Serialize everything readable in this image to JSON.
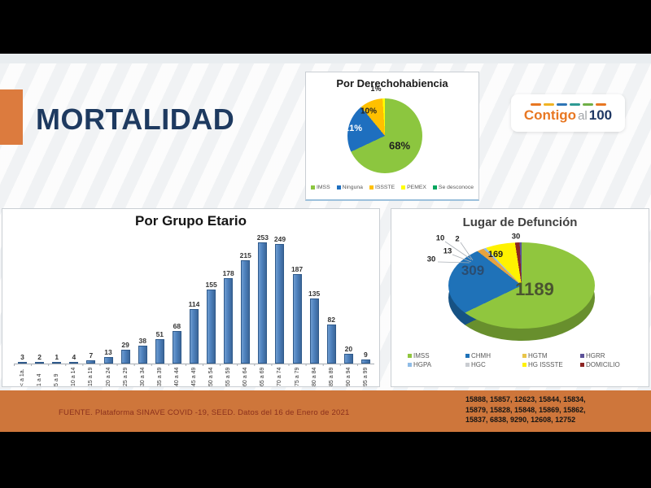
{
  "slide": {
    "title": "MORTALIDAD",
    "source_note": "FUENTE. Plataforma SINAVE COVID -19, SEED. Datos del 16 de Enero de 2021",
    "footer_numbers": [
      "15888, 15857, 12623, 15844, 15834,",
      "15879, 15828, 15848, 15869, 15862,",
      "15837, 6838, 9290, 12608, 12752"
    ]
  },
  "logo": {
    "word1": "Contigo",
    "word2": "al",
    "word3": "100",
    "dash_colors": [
      "#E87722",
      "#F0B323",
      "#2E75B6",
      "#2E9A94",
      "#6FAF46",
      "#E87722"
    ]
  },
  "colors": {
    "accent_orange": "#DC7B3E",
    "footer_orange": "#CE763B",
    "title_navy": "#1E3A60",
    "source_text": "#8B301C",
    "bar_blue": "#4E81BD"
  },
  "chart_data": [
    {
      "id": "derechohabiencia",
      "type": "pie",
      "title": "Por Derechohabiencia",
      "unit": "percent",
      "slices": [
        {
          "name": "IMSS",
          "value": 68,
          "label": "68%",
          "color": "#8CC63F"
        },
        {
          "name": "Ninguna",
          "value": 21,
          "label": "21%",
          "color": "#1E6FBF"
        },
        {
          "name": "ISSSTE",
          "value": 10,
          "label": "10%",
          "color": "#FFC000"
        },
        {
          "name": "PEMEX",
          "value": 1,
          "label": "1%",
          "color": "#FFFF00"
        }
      ],
      "legend": [
        {
          "name": "IMSS",
          "color": "#8CC63F"
        },
        {
          "name": "Ninguna",
          "color": "#1E6FBF"
        },
        {
          "name": "ISSSTE",
          "color": "#FFC000"
        },
        {
          "name": "PEMEX",
          "color": "#FFFF00"
        },
        {
          "name": "Se desconoce",
          "color": "#00A65E"
        }
      ],
      "legend_position": "bottom"
    },
    {
      "id": "grupo_etario",
      "type": "bar",
      "title": "Por Grupo Etario",
      "categories": [
        "< a 1a.",
        "1 a 4",
        "5 a 9",
        "10 a 14",
        "15 a 19",
        "20 a 24",
        "25 a 29",
        "30 a 34",
        "35 a 39",
        "40 a 44",
        "45 a 49",
        "50 a 54",
        "55 a 59",
        "60 a 64",
        "65 a 69",
        "70 a 74",
        "75 a 79",
        "80 a 84",
        "85 a 89",
        "90 a 94",
        "95 a 99"
      ],
      "values": [
        3,
        2,
        1,
        4,
        7,
        13,
        29,
        38,
        51,
        68,
        114,
        155,
        178,
        215,
        253,
        249,
        187,
        135,
        82,
        20,
        9
      ],
      "bar_color": "#4E81BD",
      "ylim": [
        0,
        260
      ],
      "grid": false,
      "legend_position": "none"
    },
    {
      "id": "lugar_defuncion",
      "type": "pie",
      "title": "Lugar de Defunción",
      "unit": "count",
      "slices": [
        {
          "name": "IMSS",
          "value": 1189,
          "color": "#90C63E"
        },
        {
          "name": "CHMH",
          "value": 309,
          "color": "#1F72B8"
        },
        {
          "name": "HGTM",
          "value": 30,
          "color": "#E8A33D"
        },
        {
          "name": "HGPA",
          "value": 10,
          "color": "#8FBCE6"
        },
        {
          "name": "HGC",
          "value": 2,
          "color": "#C9CCD1"
        },
        {
          "name": "HG ISSSTE",
          "value": 169,
          "color": "#FFF200"
        },
        {
          "name": "DOMICILIO",
          "value": 30,
          "color": "#8C2422"
        },
        {
          "name": "HGRR",
          "value": 13,
          "color": "#5C5299"
        }
      ],
      "legend": [
        {
          "name": "IMSS",
          "color": "#90C63E"
        },
        {
          "name": "CHMH",
          "color": "#1F72B8"
        },
        {
          "name": "HGTM",
          "color": "#E8C54A"
        },
        {
          "name": "HGRR",
          "color": "#5C5299"
        },
        {
          "name": "HGPA",
          "color": "#8FBCE6"
        },
        {
          "name": "HGC",
          "color": "#C9CCD1"
        },
        {
          "name": "HG ISSSTE",
          "color": "#FFF200"
        },
        {
          "name": "DOMICILIO",
          "color": "#8C2422"
        }
      ],
      "legend_position": "bottom"
    }
  ]
}
